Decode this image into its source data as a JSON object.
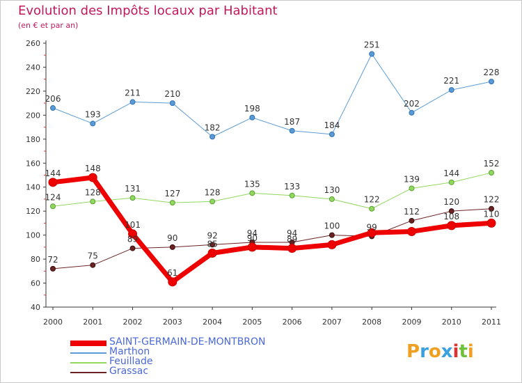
{
  "title": "Evolution des Impôts locaux par Habitant",
  "subtitle": "(en € et par an)",
  "brand": {
    "letters": [
      "P",
      "r",
      "o",
      "x",
      "i",
      "t",
      "i"
    ],
    "colors": [
      "#f0a020",
      "#3aa0e0",
      "#f0a020",
      "#3aa0e0",
      "#e03030",
      "#70c040",
      "#f0a020"
    ]
  },
  "chart_data": {
    "type": "line",
    "x": [
      2000,
      2001,
      2002,
      2003,
      2004,
      2005,
      2006,
      2007,
      2008,
      2009,
      2010,
      2011
    ],
    "ylim": [
      40,
      260
    ],
    "yticks": [
      40,
      60,
      80,
      100,
      120,
      140,
      160,
      180,
      200,
      220,
      240,
      260
    ],
    "grid": false,
    "legend_position": "bottom-left",
    "series": [
      {
        "name": "SAINT-GERMAIN-DE-MONTBRON",
        "color": "#ee0000",
        "values": [
          144,
          148,
          101,
          61,
          85,
          90,
          89,
          92,
          102,
          103,
          108,
          110
        ],
        "labels": [
          "144",
          "148",
          "101",
          "61",
          "85",
          "90",
          "89",
          "",
          "",
          "",
          "108",
          "110"
        ]
      },
      {
        "name": "Marthon",
        "color": "#5b9bd5",
        "values": [
          206,
          193,
          211,
          210,
          182,
          198,
          187,
          184,
          251,
          202,
          221,
          228
        ],
        "labels": [
          "206",
          "193",
          "211",
          "210",
          "182",
          "198",
          "187",
          "184",
          "251",
          "202",
          "221",
          "228"
        ]
      },
      {
        "name": "Feuillade",
        "color": "#90d860",
        "values": [
          124,
          128,
          131,
          127,
          128,
          135,
          133,
          130,
          122,
          139,
          144,
          152
        ],
        "labels": [
          "124",
          "128",
          "131",
          "127",
          "128",
          "135",
          "133",
          "130",
          "122",
          "139",
          "144",
          "152"
        ]
      },
      {
        "name": "Grassac",
        "color": "#6b2222",
        "values": [
          72,
          75,
          89,
          90,
          92,
          94,
          94,
          100,
          99,
          112,
          120,
          122
        ],
        "labels": [
          "72",
          "75",
          "89",
          "90",
          "92",
          "94",
          "94",
          "100",
          "99",
          "112",
          "120",
          "122"
        ]
      }
    ]
  }
}
